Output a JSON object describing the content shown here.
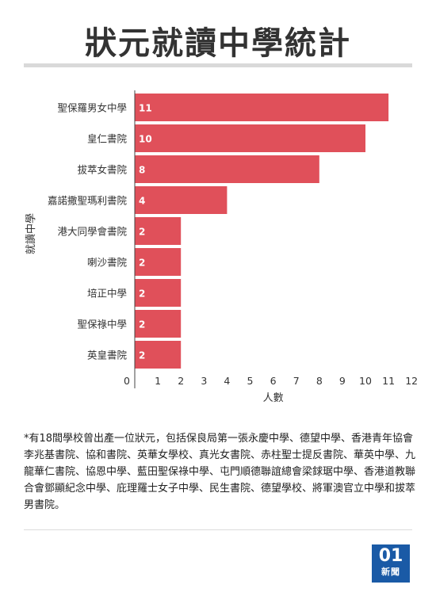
{
  "title": "狀元就讀中學統計",
  "chart_data": {
    "type": "bar",
    "orientation": "horizontal",
    "ylabel": "就讀中學",
    "xlabel": "人數",
    "categories": [
      "聖保羅男女中學",
      "皇仁書院",
      "拔萃女書院",
      "嘉諾撒聖瑪利書院",
      "港大同學會書院",
      "喇沙書院",
      "培正中學",
      "聖保祿中學",
      "英皇書院"
    ],
    "values": [
      11,
      10,
      8,
      4,
      2,
      2,
      2,
      2,
      2
    ],
    "xlim": [
      0,
      12
    ],
    "xticks": [
      0,
      1,
      2,
      3,
      4,
      5,
      6,
      7,
      8,
      9,
      10,
      11,
      12
    ],
    "bar_color": "#e0505a",
    "grid": false
  },
  "footnote": "*有18間學校曾出產一位狀元，包括保良局第一張永慶中學、德望中學、香港青年協會李兆基書院、協和書院、英華女學校、真光女書院、赤柱聖士提反書院、華英中學、九龍華仁書院、協恩中學、藍田聖保祿中學、屯門順德聯誼總會梁銶琚中學、香港道教聯合會鄧顯紀念中學、庇理羅士女子中學、民生書院、德望學校、將軍澳官立中學和拔萃男書院。",
  "logo": {
    "number": "01",
    "text": "新聞"
  }
}
